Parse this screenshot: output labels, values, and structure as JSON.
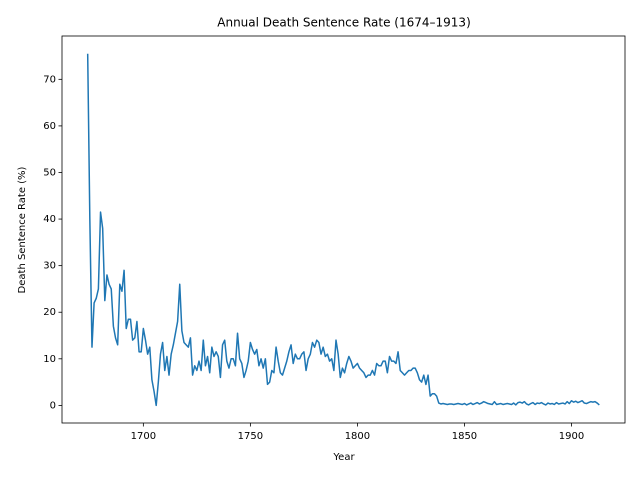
{
  "chart_data": {
    "type": "line",
    "title": "Annual Death Sentence Rate (1674–1913)",
    "x_label": "Year",
    "y_label": "Death Sentence Rate (%)",
    "x": [
      1674,
      1675,
      1676,
      1677,
      1678,
      1679,
      1680,
      1681,
      1682,
      1683,
      1684,
      1685,
      1686,
      1687,
      1688,
      1689,
      1690,
      1691,
      1692,
      1693,
      1694,
      1695,
      1696,
      1697,
      1698,
      1699,
      1700,
      1701,
      1702,
      1703,
      1704,
      1705,
      1706,
      1707,
      1708,
      1709,
      1710,
      1711,
      1712,
      1713,
      1714,
      1715,
      1716,
      1717,
      1718,
      1719,
      1720,
      1721,
      1722,
      1723,
      1724,
      1725,
      1726,
      1727,
      1728,
      1729,
      1730,
      1731,
      1732,
      1733,
      1734,
      1735,
      1736,
      1737,
      1738,
      1739,
      1740,
      1741,
      1742,
      1743,
      1744,
      1745,
      1746,
      1747,
      1748,
      1749,
      1750,
      1751,
      1752,
      1753,
      1754,
      1755,
      1756,
      1757,
      1758,
      1759,
      1760,
      1761,
      1762,
      1763,
      1764,
      1765,
      1766,
      1767,
      1768,
      1769,
      1770,
      1771,
      1772,
      1773,
      1774,
      1775,
      1776,
      1777,
      1778,
      1779,
      1780,
      1781,
      1782,
      1783,
      1784,
      1785,
      1786,
      1787,
      1788,
      1789,
      1790,
      1791,
      1792,
      1793,
      1794,
      1795,
      1796,
      1797,
      1798,
      1799,
      1800,
      1801,
      1802,
      1803,
      1804,
      1805,
      1806,
      1807,
      1808,
      1809,
      1810,
      1811,
      1812,
      1813,
      1814,
      1815,
      1816,
      1817,
      1818,
      1819,
      1820,
      1821,
      1822,
      1823,
      1824,
      1825,
      1826,
      1827,
      1828,
      1829,
      1830,
      1831,
      1832,
      1833,
      1834,
      1835,
      1836,
      1837,
      1838,
      1839,
      1840,
      1841,
      1842,
      1843,
      1844,
      1845,
      1846,
      1847,
      1848,
      1849,
      1850,
      1851,
      1852,
      1853,
      1854,
      1855,
      1856,
      1857,
      1858,
      1859,
      1860,
      1861,
      1862,
      1863,
      1864,
      1865,
      1866,
      1867,
      1868,
      1869,
      1870,
      1871,
      1872,
      1873,
      1874,
      1875,
      1876,
      1877,
      1878,
      1879,
      1880,
      1881,
      1882,
      1883,
      1884,
      1885,
      1886,
      1887,
      1888,
      1889,
      1890,
      1891,
      1892,
      1893,
      1894,
      1895,
      1896,
      1897,
      1898,
      1899,
      1900,
      1901,
      1902,
      1903,
      1904,
      1905,
      1906,
      1907,
      1908,
      1909,
      1910,
      1911,
      1912,
      1913
    ],
    "series": [
      {
        "color": "#1f77b4",
        "values": [
          75.5,
          40,
          12.5,
          22,
          23,
          25,
          41.5,
          38,
          22.5,
          28,
          26,
          25,
          17,
          14.5,
          13,
          26,
          24.5,
          29,
          16.5,
          18.5,
          18.5,
          14,
          14.5,
          18,
          11.5,
          11.5,
          16.5,
          14,
          11,
          12.5,
          5.5,
          3,
          0,
          5,
          11,
          13.5,
          7.5,
          10.5,
          6.5,
          11,
          13,
          15.5,
          18,
          26,
          16,
          13.5,
          13,
          12.5,
          14.5,
          6.5,
          8.5,
          7.5,
          9.5,
          7.5,
          14,
          8.5,
          10.5,
          7,
          12.5,
          10.5,
          11.5,
          10.5,
          6,
          13,
          14,
          9.5,
          8,
          10,
          10,
          8.5,
          15.5,
          10,
          9,
          6,
          7.5,
          9.5,
          13.5,
          12,
          11,
          12,
          8.5,
          10,
          8,
          10,
          4.5,
          5,
          7.5,
          7,
          12.5,
          9.5,
          7,
          6.5,
          8,
          9.5,
          11.5,
          13,
          9,
          11,
          10,
          10,
          11,
          11.5,
          7.5,
          10,
          11,
          13.5,
          12.5,
          14,
          13.5,
          11,
          12.5,
          10.5,
          11,
          9.5,
          10,
          7.5,
          14,
          11,
          6,
          8,
          7,
          9,
          10.5,
          9.5,
          8,
          8.5,
          9,
          8,
          7.5,
          7,
          6,
          6.5,
          6.5,
          7.5,
          6.5,
          9,
          8.5,
          8.5,
          9.5,
          9.5,
          7,
          10.5,
          9.5,
          9.5,
          9,
          11.5,
          7.5,
          7,
          6.5,
          7,
          7.5,
          7.5,
          8,
          8,
          7,
          5.5,
          5,
          6.5,
          4.5,
          6.5,
          2,
          2.5,
          2.5,
          2,
          0.5,
          0.3,
          0.4,
          0.3,
          0.2,
          0.3,
          0.3,
          0.2,
          0.3,
          0.4,
          0.3,
          0.2,
          0.4,
          0.1,
          0.3,
          0.5,
          0.2,
          0.4,
          0.6,
          0.3,
          0.5,
          0.8,
          0.6,
          0.4,
          0.3,
          0.2,
          0.8,
          0.2,
          0.3,
          0.4,
          0.2,
          0.3,
          0.4,
          0.3,
          0.2,
          0.5,
          0.1,
          0.6,
          0.7,
          0.5,
          0.8,
          0.3,
          0.1,
          0.4,
          0.6,
          0.2,
          0.5,
          0.4,
          0.6,
          0.3,
          0.1,
          0.5,
          0.3,
          0.4,
          0.2,
          0.6,
          0.3,
          0.4,
          0.5,
          0.3,
          0.8,
          0.4,
          1.0,
          0.7,
          0.9,
          0.6,
          0.8,
          1.0,
          0.5,
          0.4,
          0.6,
          0.8,
          0.7,
          0.8,
          0.5,
          0.1
        ]
      }
    ],
    "xlim": [
      1662,
      1925
    ],
    "ylim": [
      -3.78,
      79.3
    ],
    "xticks": [
      1700,
      1750,
      1800,
      1850,
      1900
    ],
    "yticks": [
      0,
      10,
      20,
      30,
      40,
      50,
      60,
      70
    ]
  }
}
